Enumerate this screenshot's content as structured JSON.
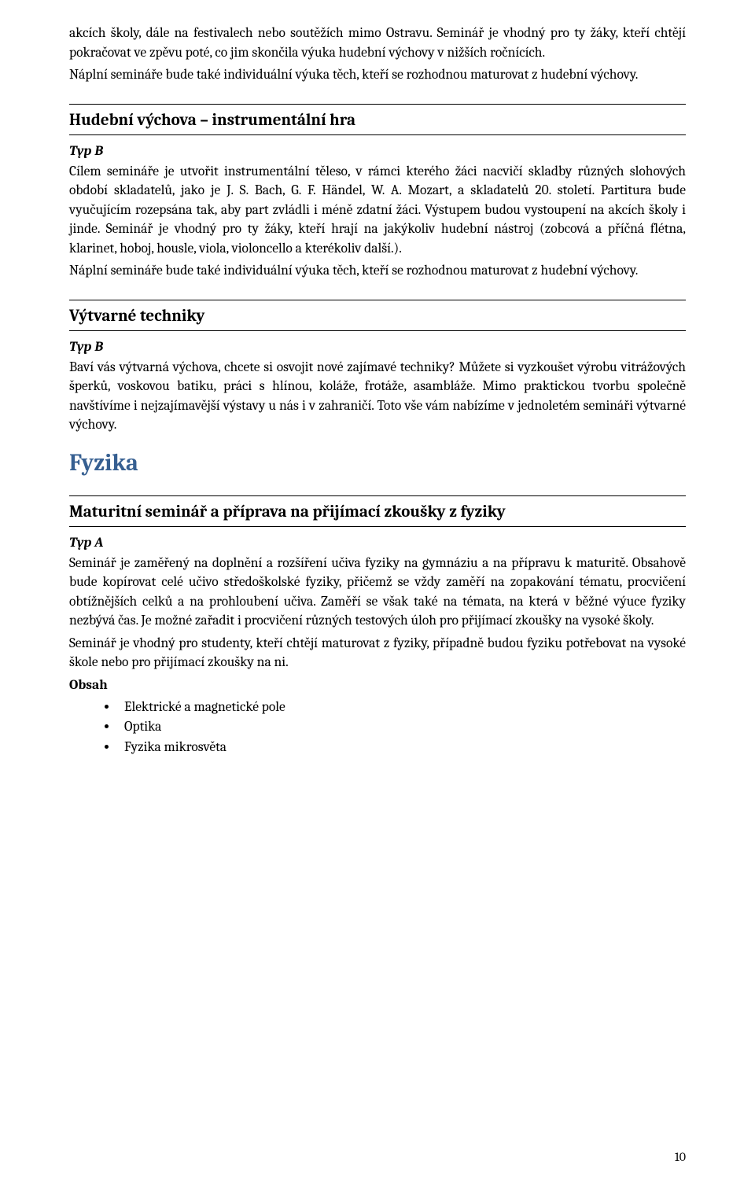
{
  "intro": {
    "p1": "akcích školy, dále na festivalech nebo soutěžích mimo Ostravu. Seminář je vhodný pro ty žáky, kteří chtějí pokračovat ve zpěvu poté, co jim skončila výuka hudební výchovy v nižších ročnících.",
    "p2": "Náplní semináře bude také individuální výuka těch, kteří se rozhodnou maturovat z hudební výchovy."
  },
  "section1": {
    "title": "Hudební výchova – instrumentální hra",
    "typ": "Typ B",
    "p1": "Cílem semináře je utvořit instrumentální těleso, v rámci kterého žáci nacvičí skladby různých slohových období skladatelů, jako je J. S. Bach, G. F. Händel, W. A. Mozart, a skladatelů 20. století. Partitura bude vyučujícím rozepsána tak, aby part zvládli i méně zdatní žáci. Výstupem budou vystoupení na akcích školy i jinde. Seminář je vhodný pro ty žáky, kteří hrají na jakýkoliv hudební nástroj (zobcová a příčná flétna, klarinet, hoboj, housle, viola, violoncello a kterékoliv další.).",
    "p2": "Náplní semináře bude také individuální výuka těch, kteří se rozhodnou maturovat z hudební výchovy."
  },
  "section2": {
    "title": "Výtvarné techniky",
    "typ": "Typ B",
    "p1": "Baví vás výtvarná výchova, chcete si osvojit nové zajímavé techniky? Můžete si vyzkoušet výrobu vitrážových šperků, voskovou batiku, práci s hlínou, koláže, frotáže, asambláže. Mimo praktickou tvorbu společně navštívíme i nejzajímavější výstavy u nás i v zahraničí. Toto vše vám nabízíme v jednoletém semináři výtvarné výchovy."
  },
  "h1": "Fyzika",
  "section3": {
    "title": "Maturitní seminář a příprava na přijímací zkoušky z fyziky",
    "typ": "Typ A",
    "p1": "Seminář je zaměřený na doplnění a rozšíření učiva fyziky na gymnáziu a na přípravu k maturitě. Obsahově bude kopírovat celé učivo středoškolské fyziky, přičemž se vždy zaměří na zopakování tématu, procvičení obtížnějších celků a na prohloubení učiva. Zaměří se však také na témata, na která v běžné výuce fyziky nezbývá čas. Je možné zařadit i procvičení různých testových úloh pro přijímací zkoušky na vysoké školy.",
    "p2": "Seminář je vhodný pro studenty, kteří chtějí maturovat z fyziky, případně budou fyziku potřebovat na vysoké škole nebo pro přijímací zkoušky na ni.",
    "obsah_label": "Obsah",
    "bullets": [
      "Elektrické a magnetické pole",
      "Optika",
      "Fyzika mikrosvěta"
    ]
  },
  "page_number": "10"
}
